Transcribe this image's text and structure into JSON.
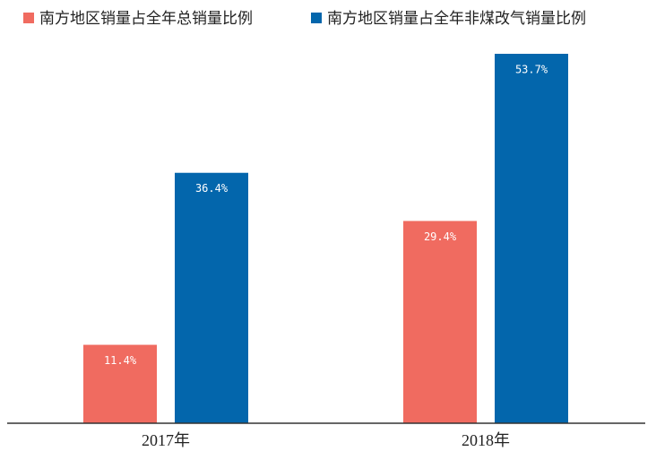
{
  "chart_data": {
    "type": "bar",
    "categories": [
      "2017年",
      "2018年"
    ],
    "series": [
      {
        "name": "南方地区销量占全年总销量比例",
        "color": "#f06b60",
        "values": [
          11.4,
          29.4
        ],
        "value_labels": [
          "11.4%",
          "29.4%"
        ]
      },
      {
        "name": "南方地区销量占全年非煤改气销量比例",
        "color": "#0366ac",
        "values": [
          36.4,
          53.7
        ],
        "value_labels": [
          "36.4%",
          "53.7%"
        ]
      }
    ],
    "legend": "top-left"
  }
}
